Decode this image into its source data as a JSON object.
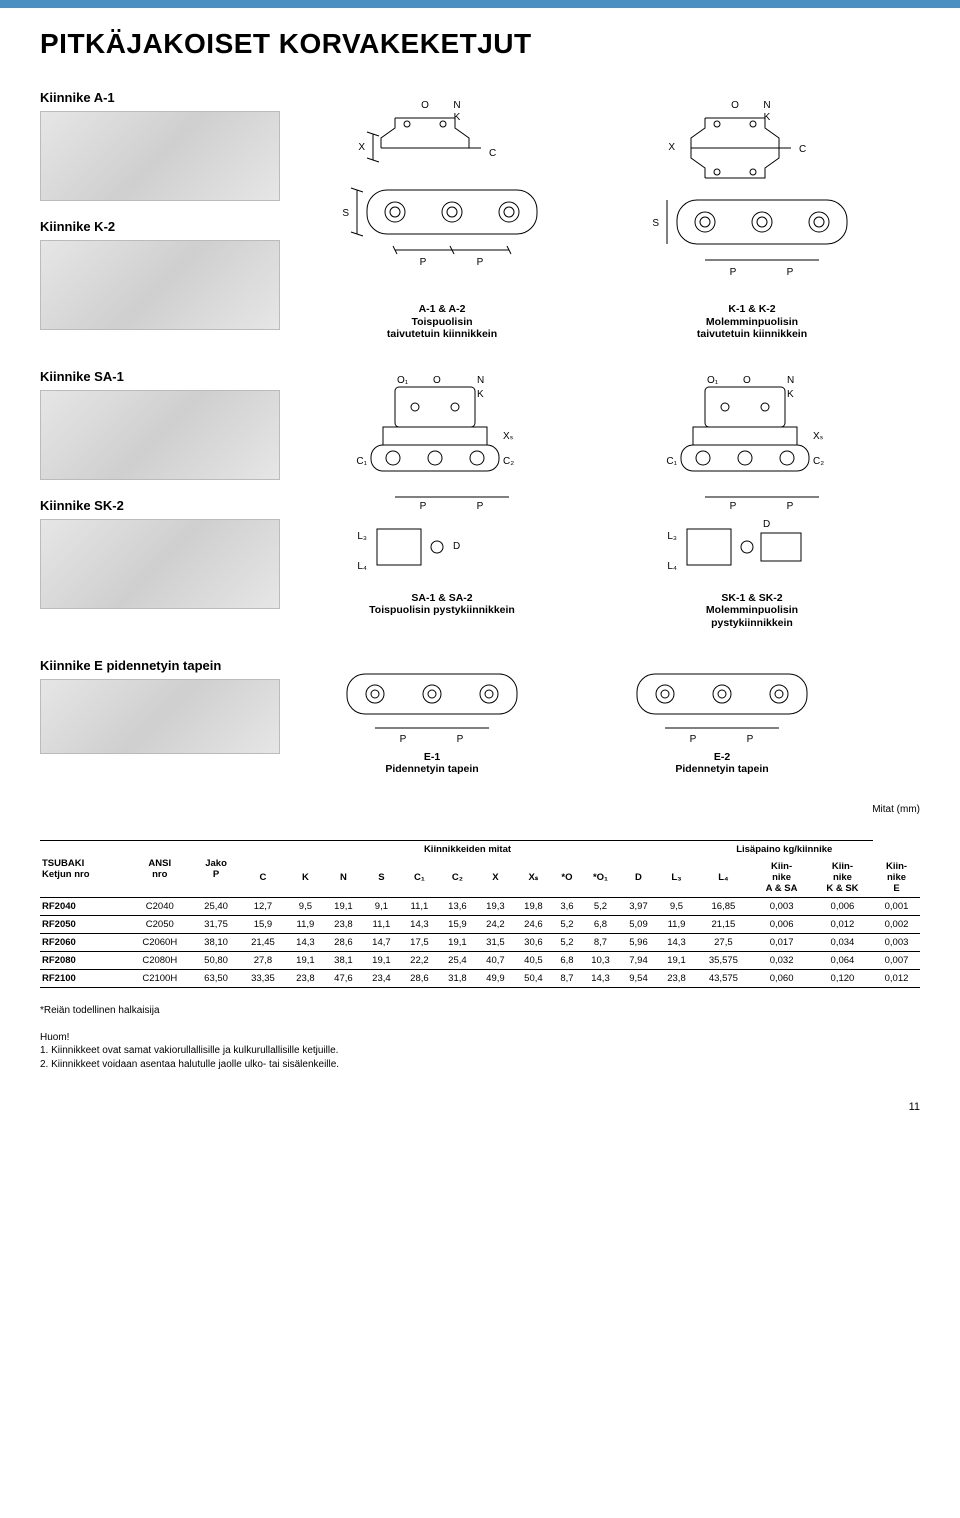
{
  "colors": {
    "stripe": "#4a90c0",
    "photo_bg_a": "#e6e6e6",
    "photo_bg_b": "#cfcfcf",
    "line": "#000000",
    "fill_light": "#f2f2f2"
  },
  "heading": "PITKÄJAKOISET KORVAKEKETJUT",
  "labels": {
    "a1": "Kiinnike A-1",
    "k2": "Kiinnike K-2",
    "sa1": "Kiinnike SA-1",
    "sk2": "Kiinnike SK-2",
    "e": "Kiinnike E pidennetyin tapein"
  },
  "captions": {
    "a12": {
      "line1": "A-1 & A-2",
      "line2": "Toispuolisin",
      "line3": "taivutetuin kiinnikkein"
    },
    "k12": {
      "line1": "K-1 & K-2",
      "line2": "Molemminpuolisin",
      "line3": "taivutetuin kiinnikkein"
    },
    "sa12": {
      "line1": "SA-1 & SA-2",
      "line2": "Toispuolisin pystykiinnikkein"
    },
    "sk12": {
      "line1": "SK-1 & SK-2",
      "line2": "Molemminpuolisin",
      "line3": "pystykiinnikkein"
    },
    "e1": {
      "line1": "E-1",
      "line2": "Pidennetyin tapein"
    },
    "e2": {
      "line1": "E-2",
      "line2": "Pidennetyin tapein"
    }
  },
  "dim_letters": {
    "O": "O",
    "N": "N",
    "K": "K",
    "X": "X",
    "C": "C",
    "S": "S",
    "P": "P",
    "O1": "O₁",
    "C1": "C₁",
    "C2": "C₂",
    "Xs": "Xₛ",
    "L3": "L₃",
    "L4": "L₄",
    "D": "D"
  },
  "units_note": "Mitat (mm)",
  "table": {
    "header_top": {
      "tsubaki": "TSUBAKI",
      "ansi": "ANSI",
      "jako": "Jako",
      "mitat": "Kiinnikkeiden mitat",
      "paino": "Lisäpaino kg/kiinnike"
    },
    "header_bot": {
      "chain": "Ketjun nro",
      "nro": "nro",
      "P": "P",
      "C": "C",
      "K": "K",
      "N": "N",
      "S": "S",
      "C1": "C₁",
      "C2": "C₂",
      "X": "X",
      "Xs": "Xₛ",
      "Ostar": "*O",
      "O1star": "*O₁",
      "D": "D",
      "L3": "L₃",
      "L4": "L₄",
      "kA": "Kiin-\nnike\nA & SA",
      "kK": "Kiin-\nnike\nK & SK",
      "kE": "Kiin-\nnike\nE"
    },
    "rows": [
      {
        "t": "RF2040",
        "a": "C2040",
        "P": "25,40",
        "C": "12,7",
        "K": "9,5",
        "N": "19,1",
        "S": "9,1",
        "C1": "11,1",
        "C2": "13,6",
        "X": "19,3",
        "Xs": "19,8",
        "O": "3,6",
        "O1": "5,2",
        "D": "3,97",
        "L3": "9,5",
        "L4": "16,85",
        "kA": "0,003",
        "kK": "0,006",
        "kE": "0,001"
      },
      {
        "t": "RF2050",
        "a": "C2050",
        "P": "31,75",
        "C": "15,9",
        "K": "11,9",
        "N": "23,8",
        "S": "11,1",
        "C1": "14,3",
        "C2": "15,9",
        "X": "24,2",
        "Xs": "24,6",
        "O": "5,2",
        "O1": "6,8",
        "D": "5,09",
        "L3": "11,9",
        "L4": "21,15",
        "kA": "0,006",
        "kK": "0,012",
        "kE": "0,002"
      },
      {
        "t": "RF2060",
        "a": "C2060H",
        "P": "38,10",
        "C": "21,45",
        "K": "14,3",
        "N": "28,6",
        "S": "14,7",
        "C1": "17,5",
        "C2": "19,1",
        "X": "31,5",
        "Xs": "30,6",
        "O": "5,2",
        "O1": "8,7",
        "D": "5,96",
        "L3": "14,3",
        "L4": "27,5",
        "kA": "0,017",
        "kK": "0,034",
        "kE": "0,003"
      },
      {
        "t": "RF2080",
        "a": "C2080H",
        "P": "50,80",
        "C": "27,8",
        "K": "19,1",
        "N": "38,1",
        "S": "19,1",
        "C1": "22,2",
        "C2": "25,4",
        "X": "40,7",
        "Xs": "40,5",
        "O": "6,8",
        "O1": "10,3",
        "D": "7,94",
        "L3": "19,1",
        "L4": "35,575",
        "kA": "0,032",
        "kK": "0,064",
        "kE": "0,007"
      },
      {
        "t": "RF2100",
        "a": "C2100H",
        "P": "63,50",
        "C": "33,35",
        "K": "23,8",
        "N": "47,6",
        "S": "23,4",
        "C1": "28,6",
        "C2": "31,8",
        "X": "49,9",
        "Xs": "50,4",
        "O": "8,7",
        "O1": "14,3",
        "D": "9,54",
        "L3": "23,8",
        "L4": "43,575",
        "kA": "0,060",
        "kK": "0,120",
        "kE": "0,012"
      }
    ]
  },
  "footnotes": {
    "star": "*Reiän todellinen halkaisija",
    "huom": "Huom!",
    "n1": "1. Kiinnikkeet ovat samat vakiorullallisille ja kulkurullallisille ketjuille.",
    "n2": "2. Kiinnikkeet voidaan asentaa halutulle jaolle ulko- tai sisälenkeille."
  },
  "page_number": "11"
}
